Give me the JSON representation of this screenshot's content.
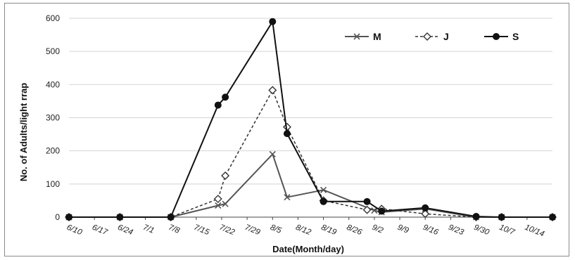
{
  "chart_data": {
    "type": "line",
    "title": "",
    "xlabel": "Date(Month/day)",
    "ylabel": "No. of Adults/light rrap",
    "ylim": [
      0,
      600
    ],
    "yticks": [
      0,
      100,
      200,
      300,
      400,
      500,
      600
    ],
    "xlim": [
      "6/10",
      "10/21"
    ],
    "xtick_labels": [
      "6/10",
      "6/17",
      "6/24",
      "7/1",
      "7/8",
      "7/15",
      "7/22",
      "7/29",
      "8/5",
      "8/12",
      "8/19",
      "8/26",
      "9/2",
      "9/9",
      "9/16",
      "9/23",
      "9/30",
      "10/7",
      "10/14"
    ],
    "grid": "horizontal",
    "legend_position": "top-right",
    "series": [
      {
        "name": "M",
        "color": "#555555",
        "marker": "x",
        "linestyle": "solid",
        "points": [
          {
            "x": "6/10",
            "y": 0
          },
          {
            "x": "6/24",
            "y": 0
          },
          {
            "x": "7/8",
            "y": 0
          },
          {
            "x": "7/21",
            "y": 35
          },
          {
            "x": "7/23",
            "y": 40
          },
          {
            "x": "8/5",
            "y": 190
          },
          {
            "x": "8/9",
            "y": 60
          },
          {
            "x": "8/19",
            "y": 82
          },
          {
            "x": "9/2",
            "y": 20
          },
          {
            "x": "9/4",
            "y": 15
          },
          {
            "x": "9/16",
            "y": 25
          },
          {
            "x": "9/30",
            "y": 0
          },
          {
            "x": "10/7",
            "y": 0
          },
          {
            "x": "10/21",
            "y": 0
          }
        ]
      },
      {
        "name": "J",
        "color": "#333333",
        "marker": "open-diamond",
        "linestyle": "dashed",
        "points": [
          {
            "x": "6/10",
            "y": 0
          },
          {
            "x": "6/24",
            "y": 0
          },
          {
            "x": "7/8",
            "y": 0
          },
          {
            "x": "7/21",
            "y": 55
          },
          {
            "x": "7/23",
            "y": 125
          },
          {
            "x": "8/5",
            "y": 383
          },
          {
            "x": "8/9",
            "y": 272
          },
          {
            "x": "8/19",
            "y": 50
          },
          {
            "x": "8/31",
            "y": 22
          },
          {
            "x": "9/4",
            "y": 25
          },
          {
            "x": "9/16",
            "y": 10
          },
          {
            "x": "9/30",
            "y": 0
          },
          {
            "x": "10/7",
            "y": 0
          },
          {
            "x": "10/21",
            "y": 0
          }
        ]
      },
      {
        "name": "S",
        "color": "#111111",
        "marker": "filled-circle",
        "linestyle": "solid",
        "points": [
          {
            "x": "6/10",
            "y": 0
          },
          {
            "x": "6/24",
            "y": 0
          },
          {
            "x": "7/8",
            "y": 0
          },
          {
            "x": "7/21",
            "y": 338
          },
          {
            "x": "7/23",
            "y": 362
          },
          {
            "x": "8/5",
            "y": 590
          },
          {
            "x": "8/9",
            "y": 252
          },
          {
            "x": "8/19",
            "y": 47
          },
          {
            "x": "8/31",
            "y": 47
          },
          {
            "x": "9/4",
            "y": 18
          },
          {
            "x": "9/16",
            "y": 28
          },
          {
            "x": "9/30",
            "y": 2
          },
          {
            "x": "10/7",
            "y": 0
          },
          {
            "x": "10/21",
            "y": 0
          }
        ]
      }
    ]
  }
}
